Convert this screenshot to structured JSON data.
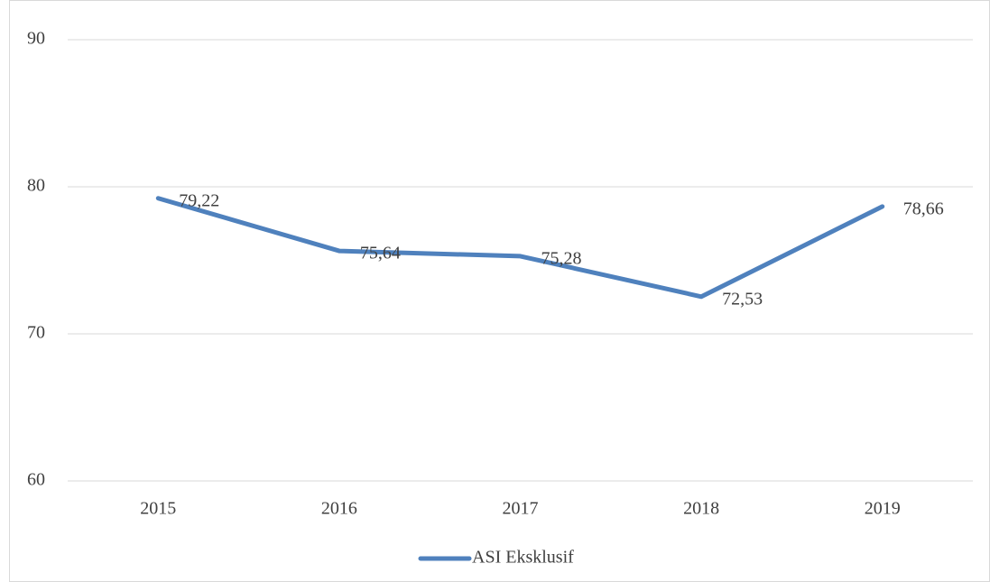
{
  "chart_data": {
    "type": "line",
    "categories": [
      "2015",
      "2016",
      "2017",
      "2018",
      "2019"
    ],
    "series": [
      {
        "name": "ASI Eksklusif",
        "color": "#4f81bd",
        "values": [
          79.22,
          75.64,
          75.28,
          72.53,
          78.66
        ],
        "value_labels": [
          "79,22",
          "75,64",
          "75,28",
          "72,53",
          "78,66"
        ]
      }
    ],
    "ylim": [
      60,
      90
    ],
    "yticks": [
      60,
      70,
      80,
      90
    ],
    "grid": true,
    "legend": "bottom"
  }
}
